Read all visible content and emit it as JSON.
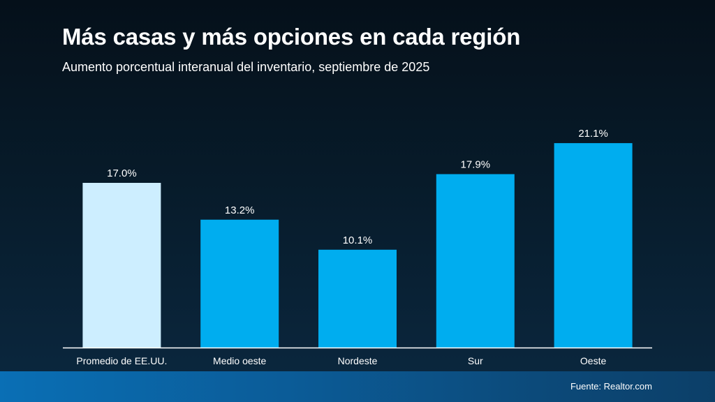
{
  "title": "Más casas y más opciones en cada región",
  "subtitle": "Aumento porcentual interanual del inventario, septiembre de 2025",
  "source": "Fuente: Realtor.com",
  "colors": {
    "highlight_bar": "#cdeeff",
    "bar": "#00adef",
    "axis": "#ffffff",
    "text": "#ffffff"
  },
  "chart_data": {
    "type": "bar",
    "categories": [
      "Promedio de EE.UU.",
      "Medio oeste",
      "Nordeste",
      "Sur",
      "Oeste"
    ],
    "values": [
      17.0,
      13.2,
      10.1,
      17.9,
      21.1
    ],
    "data_labels": [
      "17.0%",
      "13.2%",
      "10.1%",
      "17.9%",
      "21.1%"
    ],
    "highlight_index": 0,
    "ylim": [
      0,
      25
    ],
    "grid": false,
    "legend": "none"
  }
}
